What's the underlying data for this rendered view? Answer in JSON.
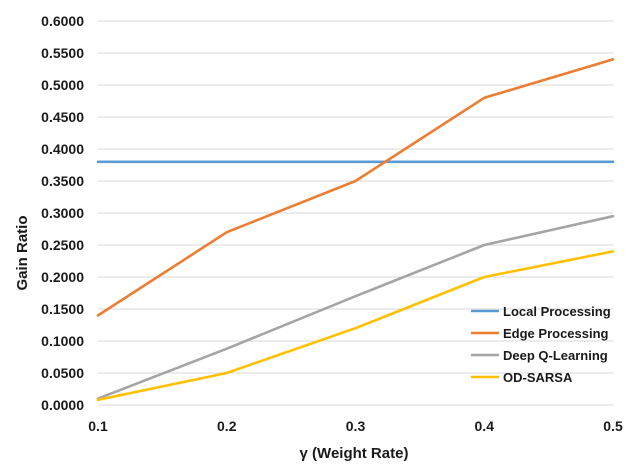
{
  "chart_data": {
    "type": "line",
    "title": "",
    "xlabel": "γ (Weight Rate)",
    "ylabel": "Gain Ratio",
    "x": [
      0.1,
      0.2,
      0.3,
      0.4,
      0.5
    ],
    "x_tick_labels": [
      "0.1",
      "0.2",
      "0.3",
      "0.4",
      "0.5"
    ],
    "ylim": [
      0,
      0.6
    ],
    "y_ticks": [
      0,
      0.05,
      0.1,
      0.15,
      0.2,
      0.25,
      0.3,
      0.35,
      0.4,
      0.45,
      0.5,
      0.55,
      0.6
    ],
    "y_tick_labels": [
      "0.0000",
      "0.0500",
      "0.1000",
      "0.1500",
      "0.2000",
      "0.2500",
      "0.3000",
      "0.3500",
      "0.4000",
      "0.4500",
      "0.5000",
      "0.5500",
      "0.6000"
    ],
    "grid": "horizontal",
    "legend_position": "bottom-right",
    "series": [
      {
        "name": "Local Processing",
        "color": "#5b9bd5",
        "values": [
          0.38,
          0.38,
          0.38,
          0.38,
          0.38
        ]
      },
      {
        "name": "Edge Processing",
        "color": "#ed7d31",
        "values": [
          0.14,
          0.27,
          0.35,
          0.48,
          0.54
        ]
      },
      {
        "name": "Deep Q-Learning",
        "color": "#a5a5a5",
        "values": [
          0.01,
          0.088,
          0.17,
          0.25,
          0.295
        ]
      },
      {
        "name": "OD-SARSA",
        "color": "#ffc000",
        "values": [
          0.008,
          0.05,
          0.12,
          0.2,
          0.24
        ]
      }
    ]
  }
}
